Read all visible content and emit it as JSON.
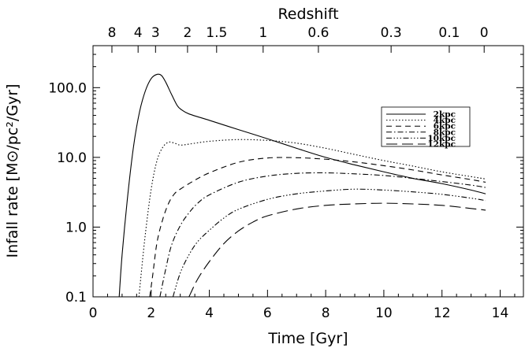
{
  "chart_data": {
    "type": "line",
    "xlabel": "Time [Gyr]",
    "ylabel": "Infall rate [M⊙/pc²/Gyr]",
    "top_label": "Redshift",
    "xlim": [
      0,
      14.8
    ],
    "ylim": [
      0.1,
      400
    ],
    "y_scale": "log",
    "x_ticks": [
      0,
      2,
      4,
      6,
      8,
      10,
      12,
      14
    ],
    "x_tick_labels": [
      "0",
      "2",
      "4",
      "6",
      "8",
      "10",
      "12",
      "14"
    ],
    "y_ticks": [
      0.1,
      1,
      10,
      100
    ],
    "y_tick_labels": [
      "0.1",
      "1.0",
      "10.0",
      "100.0"
    ],
    "top_ticks": [
      {
        "label": "8",
        "time": 0.65
      },
      {
        "label": "4",
        "time": 1.55
      },
      {
        "label": "3",
        "time": 2.15
      },
      {
        "label": "2",
        "time": 3.25
      },
      {
        "label": "1.5",
        "time": 4.25
      },
      {
        "label": "1",
        "time": 5.85
      },
      {
        "label": "0.6",
        "time": 7.75
      },
      {
        "label": "0.3",
        "time": 10.25
      },
      {
        "label": "0.1",
        "time": 12.25
      },
      {
        "label": "0",
        "time": 13.45
      }
    ],
    "grid": false,
    "legend_position": "top-right",
    "series": [
      {
        "name": "2kpc",
        "dash": "",
        "x": [
          0.9,
          1.0,
          1.2,
          1.4,
          1.6,
          1.8,
          2.0,
          2.2,
          2.35,
          2.5,
          2.7,
          2.9,
          3.05,
          3.3,
          4,
          5,
          6,
          7,
          8,
          9,
          10,
          11,
          12,
          13,
          13.5
        ],
        "y": [
          0.1,
          0.4,
          3,
          15,
          45,
          90,
          135,
          155,
          150,
          120,
          80,
          55,
          48,
          42,
          34,
          25,
          18.5,
          13.5,
          10,
          7.8,
          6.2,
          5,
          4.2,
          3.4,
          3.0
        ]
      },
      {
        "name": "4kpc",
        "dash": "1.5,2.5",
        "x": [
          1.58,
          1.65,
          1.8,
          2.0,
          2.2,
          2.4,
          2.6,
          2.8,
          3.0,
          3.3,
          4,
          5,
          6,
          7,
          8,
          9,
          10,
          11,
          12,
          13,
          13.5
        ],
        "y": [
          0.1,
          0.2,
          0.8,
          3.5,
          9,
          14,
          16.5,
          16,
          15,
          15.5,
          17,
          18,
          17.5,
          16,
          13.5,
          11,
          9,
          7.5,
          6.2,
          5.3,
          4.9
        ]
      },
      {
        "name": "6kpc",
        "dash": "7,5",
        "x": [
          1.95,
          2.05,
          2.2,
          2.4,
          2.6,
          2.8,
          3.0,
          3.5,
          4,
          5,
          6,
          7,
          8,
          9,
          10,
          11,
          12,
          13,
          13.5
        ],
        "y": [
          0.1,
          0.2,
          0.6,
          1.3,
          2.2,
          3.0,
          3.5,
          4.7,
          6,
          8.5,
          9.8,
          9.9,
          9.4,
          8.6,
          7.6,
          6.6,
          5.6,
          4.8,
          4.4
        ]
      },
      {
        "name": "8kpc",
        "dash": "7,3,1.5,3",
        "x": [
          2.3,
          2.5,
          2.7,
          3.0,
          3.3,
          3.6,
          4,
          5,
          6,
          7,
          8,
          9,
          10,
          11,
          12,
          13,
          13.5
        ],
        "y": [
          0.1,
          0.25,
          0.55,
          1.05,
          1.6,
          2.2,
          2.9,
          4.4,
          5.4,
          5.9,
          6.0,
          5.8,
          5.5,
          5.0,
          4.5,
          4.0,
          3.7
        ]
      },
      {
        "name": "10kpc",
        "dash": "7,2.5,1.5,2.5,1.5,2.5,1.5,2.5",
        "x": [
          2.75,
          3.0,
          3.3,
          3.6,
          4,
          4.5,
          5,
          6,
          7,
          8,
          9,
          10,
          11,
          12,
          13,
          13.5
        ],
        "y": [
          0.1,
          0.22,
          0.4,
          0.62,
          0.9,
          1.35,
          1.8,
          2.5,
          3.0,
          3.3,
          3.5,
          3.4,
          3.2,
          2.95,
          2.6,
          2.4
        ]
      },
      {
        "name": "12kpc",
        "dash": "14,6",
        "x": [
          3.3,
          3.6,
          4,
          4.5,
          5,
          5.5,
          6,
          7,
          8,
          9,
          10,
          11,
          12,
          13,
          13.5
        ],
        "y": [
          0.1,
          0.18,
          0.32,
          0.58,
          0.88,
          1.18,
          1.45,
          1.82,
          2.05,
          2.15,
          2.2,
          2.15,
          2.05,
          1.85,
          1.75
        ]
      }
    ]
  }
}
